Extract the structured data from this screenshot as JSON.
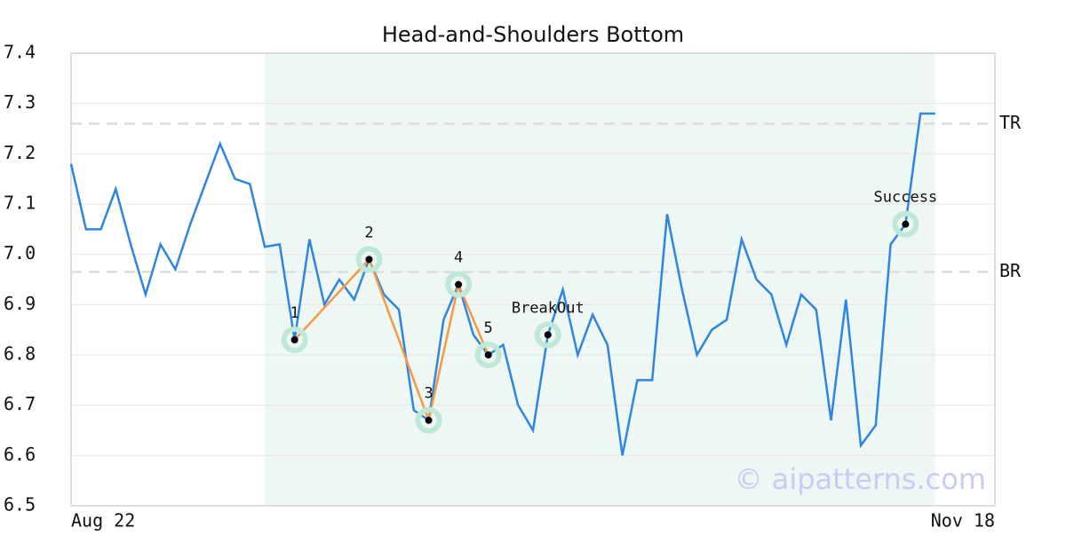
{
  "chart_data": {
    "type": "line",
    "title": "Head-and-Shoulders Bottom",
    "x": [
      0,
      1,
      2,
      3,
      4,
      5,
      6,
      7,
      8,
      9,
      10,
      11,
      12,
      13,
      14,
      15,
      16,
      17,
      18,
      19,
      20,
      21,
      22,
      23,
      24,
      25,
      26,
      27,
      28,
      29,
      30,
      31,
      32,
      33,
      34,
      35,
      36,
      37,
      38,
      39,
      40,
      41,
      42,
      43,
      44,
      45,
      46,
      47,
      48,
      49,
      50,
      51,
      52,
      53,
      54,
      55,
      56,
      57,
      58
    ],
    "series": [
      {
        "color": "#2f86e0",
        "values": [
          7.18,
          7.05,
          7.05,
          7.13,
          7.02,
          6.92,
          7.02,
          6.97,
          7.06,
          7.14,
          7.22,
          7.15,
          7.14,
          7.015,
          7.02,
          6.83,
          7.03,
          6.9,
          6.95,
          6.91,
          6.99,
          6.92,
          6.89,
          6.69,
          6.67,
          6.87,
          6.94,
          6.84,
          6.8,
          6.82,
          6.7,
          6.65,
          6.84,
          6.93,
          6.8,
          6.88,
          6.82,
          6.6,
          6.75,
          6.75,
          7.08,
          6.93,
          6.8,
          6.85,
          6.87,
          7.03,
          6.95,
          6.92,
          6.82,
          6.92,
          6.89,
          6.67,
          6.91,
          6.62,
          6.66,
          7.02,
          7.06,
          7.28,
          7.28
        ]
      }
    ],
    "xlim": [
      0,
      62
    ],
    "xticks": [
      {
        "value": 0,
        "label": "Aug 22"
      },
      {
        "value": 62,
        "label": "Nov 18"
      }
    ],
    "ylim": [
      6.5,
      7.4
    ],
    "yticks": [
      6.5,
      6.6,
      6.7,
      6.8,
      6.9,
      7.0,
      7.1,
      7.2,
      7.3,
      7.4
    ],
    "grid": true,
    "shaded_region": {
      "x": [
        13,
        58
      ],
      "color": "#eef7f3"
    },
    "pattern": {
      "color": "#f59a42",
      "marker_color": "#bfe8d6",
      "points": [
        {
          "label": "1",
          "x": 15,
          "y": 6.83
        },
        {
          "label": "2",
          "x": 20,
          "y": 6.99
        },
        {
          "label": "3",
          "x": 24,
          "y": 6.67
        },
        {
          "label": "4",
          "x": 26,
          "y": 6.94
        },
        {
          "label": "5",
          "x": 28,
          "y": 6.8
        }
      ]
    },
    "events": [
      {
        "label": "BreakOut",
        "x": 32,
        "y": 6.84
      },
      {
        "label": "Success",
        "x": 56,
        "y": 7.06
      }
    ],
    "levels": [
      {
        "label": "TR",
        "value": 7.26
      },
      {
        "label": "BR",
        "value": 6.965
      }
    ],
    "watermark": "© aipatterns.com"
  }
}
